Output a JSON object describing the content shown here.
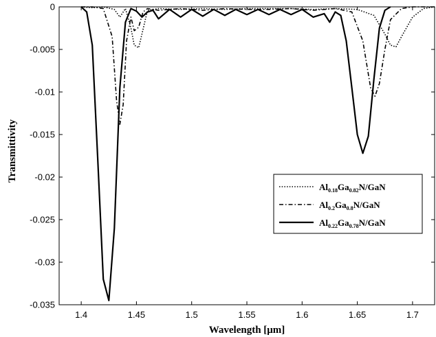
{
  "chart_data": {
    "type": "line",
    "xlabel": "Wavelength [μm]",
    "ylabel": "Transmittivity",
    "xlim": [
      1.38,
      1.72
    ],
    "ylim": [
      -0.035,
      0
    ],
    "xticks": [
      1.4,
      1.45,
      1.5,
      1.55,
      1.6,
      1.65,
      1.7
    ],
    "xtick_labels": [
      "1.4",
      "1.45",
      "1.5",
      "1.55",
      "1.6",
      "1.65",
      "1.7"
    ],
    "yticks": [
      0,
      -0.005,
      -0.01,
      -0.015,
      -0.02,
      -0.025,
      -0.03,
      -0.035
    ],
    "ytick_labels": [
      "0",
      "-0.005",
      "-0.01",
      "-0.015",
      "-0.02",
      "-0.025",
      "-0.03",
      "-0.035"
    ],
    "grid": false,
    "legend_position": "center-right",
    "series": [
      {
        "name": "Al0.18Ga0.82N/GaN",
        "legend_parts": [
          "Al",
          "0.18",
          "Ga",
          "0.82",
          "N/GaN"
        ],
        "style": "dotted",
        "x": [
          1.4,
          1.41,
          1.42,
          1.43,
          1.435,
          1.44,
          1.445,
          1.448,
          1.452,
          1.455,
          1.46,
          1.47,
          1.49,
          1.51,
          1.53,
          1.55,
          1.57,
          1.59,
          1.61,
          1.63,
          1.65,
          1.665,
          1.675,
          1.68,
          1.685,
          1.69,
          1.7,
          1.71,
          1.72
        ],
        "y": [
          0,
          -0.0001,
          0,
          -0.0003,
          -0.0012,
          -0.0002,
          -0.0025,
          -0.0045,
          -0.0048,
          -0.0032,
          -0.0004,
          -0.0002,
          -0.0003,
          -0.0002,
          -0.0003,
          -0.0002,
          -0.0002,
          -0.0002,
          -0.0003,
          -0.0002,
          -0.0003,
          -0.001,
          -0.0032,
          -0.0045,
          -0.0047,
          -0.0035,
          -0.0012,
          -0.0002,
          0
        ]
      },
      {
        "name": "Al0.2Ga0.8N/GaN",
        "legend_parts": [
          "Al",
          "0.2",
          "Ga",
          "0.8",
          "N/GaN"
        ],
        "style": "dashdot",
        "x": [
          1.4,
          1.41,
          1.42,
          1.428,
          1.432,
          1.435,
          1.438,
          1.441,
          1.445,
          1.448,
          1.452,
          1.456,
          1.46,
          1.47,
          1.49,
          1.51,
          1.53,
          1.55,
          1.57,
          1.59,
          1.61,
          1.63,
          1.645,
          1.655,
          1.662,
          1.666,
          1.67,
          1.675,
          1.68,
          1.69,
          1.7,
          1.72
        ],
        "y": [
          0,
          0,
          -0.0002,
          -0.0035,
          -0.011,
          -0.0138,
          -0.0115,
          -0.004,
          -0.0012,
          -0.0028,
          -0.0024,
          -0.0006,
          -0.0002,
          -0.0004,
          -0.0002,
          -0.0004,
          -0.0002,
          -0.0003,
          -0.0003,
          -0.0002,
          -0.0004,
          -0.0002,
          -0.0006,
          -0.004,
          -0.0095,
          -0.0105,
          -0.009,
          -0.005,
          -0.0015,
          -0.0002,
          0,
          0
        ]
      },
      {
        "name": "Al0.22Ga0.78N/GaN",
        "legend_parts": [
          "Al",
          "0.22",
          "Ga",
          "0.78",
          "N/GaN"
        ],
        "style": "solid",
        "x": [
          1.4,
          1.405,
          1.41,
          1.415,
          1.42,
          1.425,
          1.43,
          1.435,
          1.44,
          1.445,
          1.45,
          1.455,
          1.46,
          1.465,
          1.47,
          1.48,
          1.49,
          1.5,
          1.51,
          1.52,
          1.53,
          1.54,
          1.55,
          1.56,
          1.57,
          1.58,
          1.59,
          1.6,
          1.61,
          1.62,
          1.625,
          1.63,
          1.635,
          1.64,
          1.645,
          1.65,
          1.655,
          1.66,
          1.665,
          1.67,
          1.675,
          1.68
        ],
        "y": [
          0,
          -0.0006,
          -0.0045,
          -0.018,
          -0.032,
          -0.0345,
          -0.026,
          -0.0095,
          -0.0018,
          -0.0002,
          -0.0005,
          -0.0012,
          -0.0006,
          -0.0004,
          -0.0014,
          -0.0003,
          -0.0012,
          -0.0003,
          -0.0011,
          -0.0003,
          -0.001,
          -0.0003,
          -0.0009,
          -0.0003,
          -0.0009,
          -0.0003,
          -0.0009,
          -0.0003,
          -0.0012,
          -0.0008,
          -0.0018,
          -0.0006,
          -0.001,
          -0.004,
          -0.0095,
          -0.015,
          -0.0172,
          -0.0152,
          -0.0085,
          -0.0025,
          -0.0004,
          0
        ]
      }
    ]
  }
}
